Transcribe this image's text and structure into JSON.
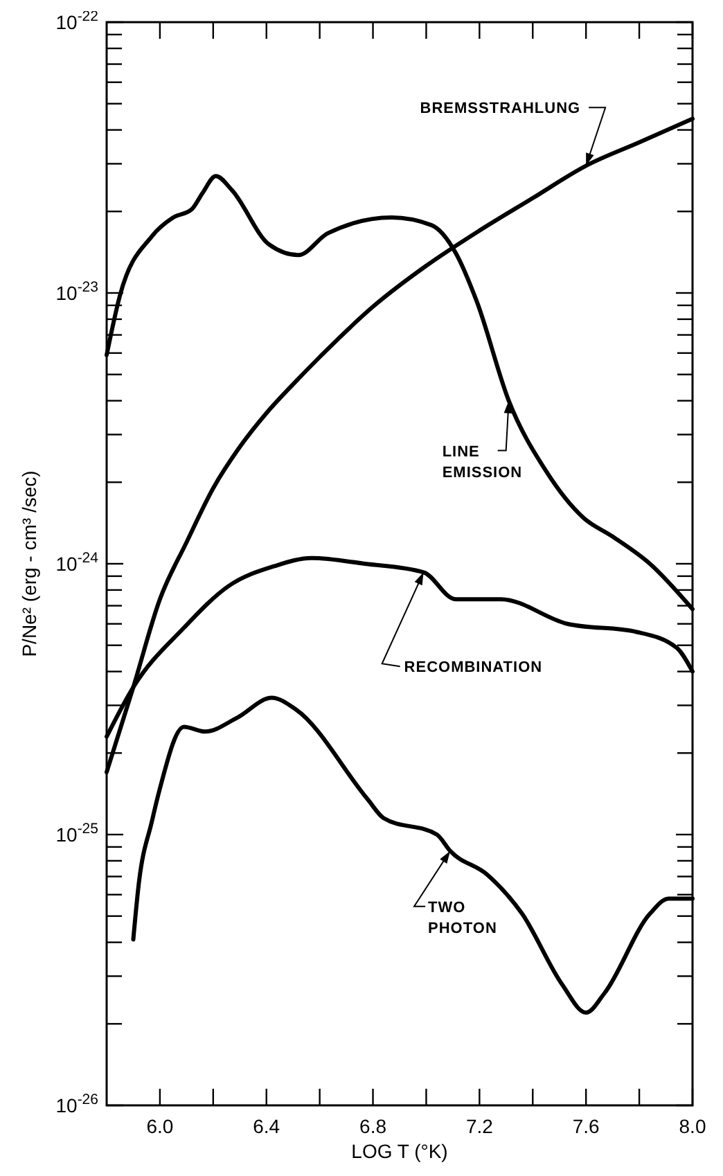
{
  "chart_data": {
    "type": "line",
    "xlabel": "LOG T (°K)",
    "ylabel": "P/Ne² (erg - cm³ /sec)",
    "log": "y",
    "grid": false,
    "marker": "none",
    "xlim": [
      5.8,
      8.0
    ],
    "xticks": [
      {
        "value": 6,
        "label": "6.0"
      },
      {
        "value": 6.2,
        "label": null
      },
      {
        "value": 6.4,
        "label": "6.4"
      },
      {
        "value": 6.6,
        "label": null
      },
      {
        "value": 6.8,
        "label": "6.8"
      },
      {
        "value": 7,
        "label": null
      },
      {
        "value": 7.2,
        "label": "7.2"
      },
      {
        "value": 7.4,
        "label": null
      },
      {
        "value": 7.6,
        "label": "7.6"
      },
      {
        "value": 7.8,
        "label": null
      },
      {
        "value": 8,
        "label": "8.0"
      }
    ],
    "ylim": [
      1e-26,
      1e-22
    ],
    "yticks": [
      {
        "value": 1e-26,
        "label": "10$^{-26}$"
      },
      {
        "value": 2e-26,
        "label": null
      },
      {
        "value": 3e-26,
        "label": null
      },
      {
        "value": 4e-26,
        "label": null
      },
      {
        "value": 5e-26,
        "label": null
      },
      {
        "value": 6e-26,
        "label": null
      },
      {
        "value": 7e-26,
        "label": null
      },
      {
        "value": 8e-26,
        "label": null
      },
      {
        "value": 9e-26,
        "label": null
      },
      {
        "value": 1e-25,
        "label": "10$^{-25}$"
      },
      {
        "value": 2e-25,
        "label": null
      },
      {
        "value": 3e-25,
        "label": null
      },
      {
        "value": 4e-25,
        "label": null
      },
      {
        "value": 5e-25,
        "label": null
      },
      {
        "value": 6e-25,
        "label": null
      },
      {
        "value": 7e-25,
        "label": null
      },
      {
        "value": 8e-25,
        "label": null
      },
      {
        "value": 9e-25,
        "label": null
      },
      {
        "value": 1e-24,
        "label": "10$^{-24}$"
      },
      {
        "value": 2e-24,
        "label": null
      },
      {
        "value": 3e-24,
        "label": null
      },
      {
        "value": 4e-24,
        "label": null
      },
      {
        "value": 5e-24,
        "label": null
      },
      {
        "value": 6e-24,
        "label": null
      },
      {
        "value": 7e-24,
        "label": null
      },
      {
        "value": 8e-24,
        "label": null
      },
      {
        "value": 9e-24,
        "label": null
      },
      {
        "value": 1e-23,
        "label": "10$^{-23}$"
      },
      {
        "value": 2e-23,
        "label": null
      },
      {
        "value": 3e-23,
        "label": null
      },
      {
        "value": 4e-23,
        "label": null
      },
      {
        "value": 5e-23,
        "label": null
      },
      {
        "value": 6e-23,
        "label": null
      },
      {
        "value": 7e-23,
        "label": null
      },
      {
        "value": 8e-23,
        "label": null
      },
      {
        "value": 9e-23,
        "label": null
      },
      {
        "value": 1e-22,
        "label": "10$^{-22}$"
      }
    ],
    "series": [
      {
        "name": "BREMSSTRAHLUNG",
        "color": "#000000",
        "x": [
          5.8,
          5.9,
          6.0,
          6.1,
          6.2,
          6.3,
          6.4,
          6.5,
          6.6,
          6.8,
          7.0,
          7.2,
          7.4,
          7.6,
          7.8,
          8.0
        ],
        "values": [
          1.7e-25,
          3.5e-25,
          7.4e-25,
          1.2e-24,
          1.9e-24,
          2.7e-24,
          3.6e-24,
          4.6e-24,
          5.8e-24,
          8.9e-24,
          1.26e-23,
          1.7e-23,
          2.24e-23,
          2.95e-23,
          3.6e-23,
          4.4e-23
        ]
      },
      {
        "name": "LINE EMISSION",
        "color": "#000000",
        "x": [
          5.8,
          5.85,
          5.97,
          6.05,
          6.12,
          6.16,
          6.21,
          6.27,
          6.41,
          6.52,
          6.63,
          6.87,
          7.02,
          7.11,
          7.19,
          7.31,
          7.45,
          7.59,
          7.7,
          7.84,
          8.0
        ],
        "values": [
          5.9e-24,
          9.8e-24,
          1.62e-23,
          1.9e-23,
          2.04e-23,
          2.34e-23,
          2.7e-23,
          2.4e-23,
          1.51e-23,
          1.38e-23,
          1.66e-23,
          1.9e-23,
          1.78e-23,
          1.41e-23,
          9.3e-24,
          4e-24,
          2.2e-24,
          1.48e-24,
          1.26e-24,
          1e-24,
          6.8e-25
        ]
      },
      {
        "name": "RECOMBINATION",
        "color": "#000000",
        "x": [
          5.8,
          5.9,
          6.09,
          6.26,
          6.43,
          6.57,
          6.77,
          6.99,
          7.11,
          7.28,
          7.53,
          7.79,
          7.94,
          8.0
        ],
        "values": [
          2.3e-25,
          3.5e-25,
          5.8e-25,
          8.3e-25,
          9.8e-25,
          1.05e-24,
          1e-24,
          9.3e-25,
          7.4e-25,
          7.4e-25,
          6e-25,
          5.6e-25,
          4.9e-25,
          4e-25
        ]
      },
      {
        "name": "TWO PHOTON",
        "color": "#000000",
        "x": [
          5.9,
          5.92,
          5.97,
          6.0,
          6.09,
          6.17,
          6.29,
          6.42,
          6.51,
          6.78,
          6.84,
          7.04,
          7.09,
          7.23,
          7.36,
          7.51,
          7.6,
          7.67,
          7.84,
          7.91,
          8.0
        ],
        "values": [
          4.1e-26,
          6.5e-26,
          1.12e-25,
          1.48e-25,
          2.5e-25,
          2.4e-25,
          2.7e-25,
          3.2e-25,
          2.9e-25,
          1.35e-25,
          1.15e-25,
          1e-25,
          8.7e-26,
          7.1e-26,
          5.1e-26,
          2.8e-26,
          2.2e-26,
          2.6e-26,
          5.1e-26,
          5.8e-26,
          5.8e-26
        ]
      }
    ]
  }
}
